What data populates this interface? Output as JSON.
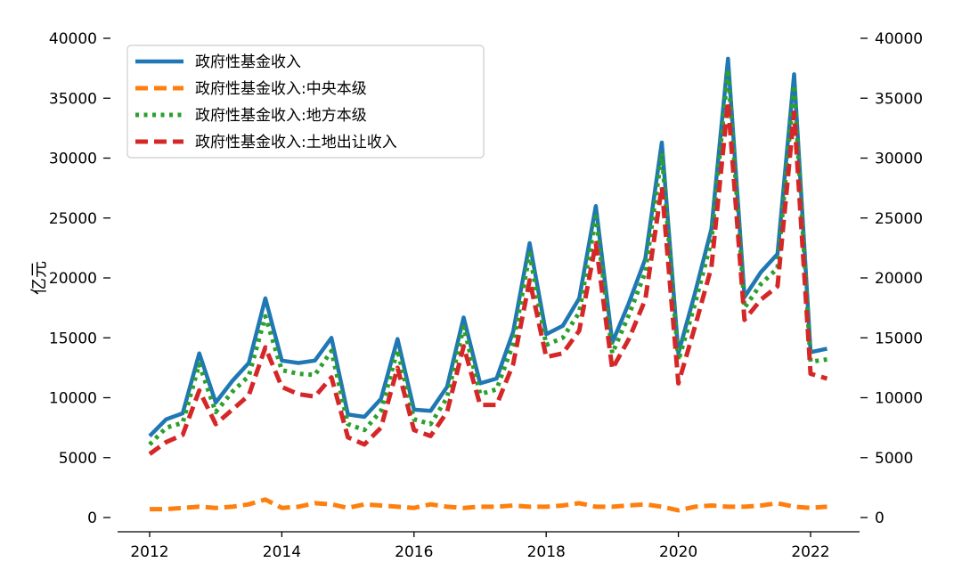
{
  "chart_data": {
    "type": "line",
    "title": "",
    "xlabel": "",
    "ylabel": "亿元",
    "xlim": [
      2011.8,
      2022.75
    ],
    "ylim": [
      -1000,
      40500
    ],
    "x_ticks": [
      "2012",
      "2014",
      "2016",
      "2018",
      "2020",
      "2022"
    ],
    "y_ticks": [
      "0",
      "5000",
      "10000",
      "15000",
      "20000",
      "25000",
      "30000",
      "35000",
      "40000"
    ],
    "right_y_ticks": [
      "0",
      "5000",
      "10000",
      "15000",
      "20000",
      "25000",
      "30000",
      "35000",
      "40000"
    ],
    "grid": false,
    "legend_position": "upper-left",
    "x": [
      2012.0,
      2012.25,
      2012.5,
      2012.75,
      2013.0,
      2013.25,
      2013.5,
      2013.75,
      2014.0,
      2014.25,
      2014.5,
      2014.75,
      2015.0,
      2015.25,
      2015.5,
      2015.75,
      2016.0,
      2016.25,
      2016.5,
      2016.75,
      2017.0,
      2017.25,
      2017.5,
      2017.75,
      2018.0,
      2018.25,
      2018.5,
      2018.75,
      2019.0,
      2019.25,
      2019.5,
      2019.75,
      2020.0,
      2020.25,
      2020.5,
      2020.75,
      2021.0,
      2021.25,
      2021.5,
      2021.75,
      2022.0,
      2022.25
    ],
    "series": [
      {
        "name": "政府性基金收入",
        "color": "#1f77b4",
        "dash": "solid",
        "values": [
          6800,
          8200,
          8700,
          13700,
          9600,
          11400,
          12900,
          18300,
          13100,
          12900,
          13100,
          15000,
          8600,
          8400,
          9900,
          14900,
          9000,
          8900,
          10900,
          16700,
          11200,
          11600,
          15500,
          22900,
          15300,
          16000,
          18300,
          26000,
          14600,
          17900,
          21600,
          31300,
          13700,
          18700,
          24100,
          38300,
          18400,
          20500,
          22000,
          37000,
          13800,
          14100
        ]
      },
      {
        "name": "政府性基金收入:中央本级",
        "color": "#ff7f0e",
        "dash": "dashed",
        "values": [
          700,
          700,
          800,
          900,
          800,
          900,
          1100,
          1500,
          800,
          900,
          1200,
          1100,
          800,
          1100,
          1000,
          900,
          800,
          1100,
          900,
          800,
          900,
          900,
          1000,
          900,
          900,
          1000,
          1200,
          900,
          900,
          1000,
          1100,
          900,
          600,
          900,
          1000,
          900,
          900,
          1000,
          1200,
          900,
          800,
          900
        ]
      },
      {
        "name": "政府性基金收入:地方本级",
        "color": "#2ca02c",
        "dash": "dotted",
        "values": [
          6100,
          7500,
          7900,
          12800,
          8800,
          10500,
          11800,
          16800,
          12300,
          12000,
          11900,
          13900,
          7800,
          7300,
          8900,
          14000,
          8200,
          7800,
          10000,
          15900,
          10300,
          10700,
          14500,
          22000,
          14400,
          15000,
          17100,
          25100,
          13700,
          16900,
          20500,
          30400,
          13100,
          17800,
          23100,
          37400,
          17500,
          19500,
          20800,
          36100,
          13000,
          13200
        ]
      },
      {
        "name": "政府性基金收入:土地出让收入",
        "color": "#d62728",
        "dash": "dashed",
        "values": [
          5300,
          6300,
          6900,
          10600,
          7800,
          9000,
          10200,
          14200,
          10900,
          10300,
          10100,
          11700,
          6700,
          6100,
          7500,
          12500,
          7300,
          6800,
          8800,
          14300,
          9400,
          9400,
          12800,
          19800,
          13400,
          13700,
          15600,
          22900,
          12400,
          14900,
          18200,
          27600,
          11200,
          15900,
          20900,
          34700,
          16500,
          18200,
          19300,
          33800,
          12000,
          11600
        ]
      }
    ]
  }
}
